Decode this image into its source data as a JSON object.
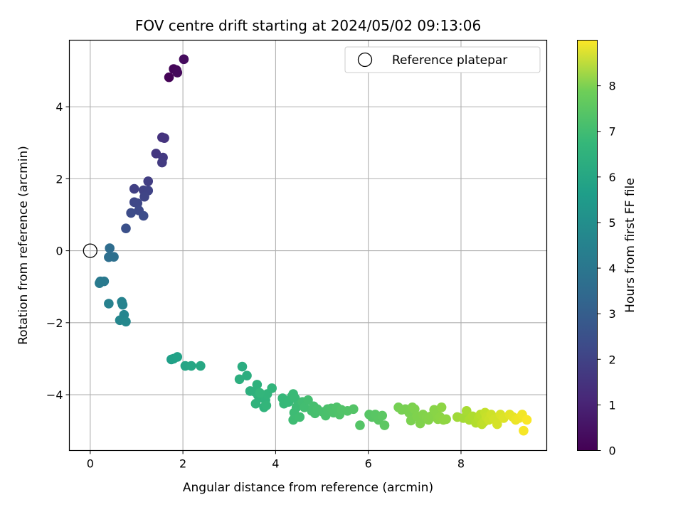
{
  "chart_data": {
    "type": "scatter",
    "title": "FOV centre drift starting at 2024/05/02 09:13:06",
    "xlabel": "Angular distance from reference (arcmin)",
    "ylabel": "Rotation from reference (arcmin)",
    "xlim": [
      -0.45,
      9.85
    ],
    "ylim": [
      -5.55,
      5.85
    ],
    "xticks": [
      0,
      2,
      4,
      6,
      8
    ],
    "xtick_labels": [
      "0",
      "2",
      "4",
      "6",
      "8"
    ],
    "yticks": [
      -4,
      -2,
      0,
      2,
      4
    ],
    "ytick_labels": [
      "−4",
      "−2",
      "0",
      "2",
      "4"
    ],
    "grid": true,
    "legend": {
      "position": "top-right",
      "entries": [
        "Reference platepar"
      ]
    },
    "reference_point": {
      "x": 0,
      "y": 0
    },
    "colorbar": {
      "label": "Hours from first FF file",
      "colormap": "viridis",
      "range": [
        0,
        9.0
      ],
      "ticks": [
        0,
        1,
        2,
        3,
        4,
        5,
        6,
        7,
        8
      ],
      "tick_labels": [
        "0",
        "1",
        "2",
        "3",
        "4",
        "5",
        "6",
        "7",
        "8"
      ]
    },
    "series": [
      {
        "points": [
          {
            "x": 1.7,
            "y": 4.82,
            "c": 0.05
          },
          {
            "x": 1.8,
            "y": 5.05,
            "c": 0.1
          },
          {
            "x": 1.86,
            "y": 5.02,
            "c": 0.15
          },
          {
            "x": 1.88,
            "y": 4.95,
            "c": 0.2
          },
          {
            "x": 2.02,
            "y": 5.32,
            "c": 0.25
          },
          {
            "x": 1.55,
            "y": 3.15,
            "c": 1.3
          },
          {
            "x": 1.6,
            "y": 3.13,
            "c": 1.35
          },
          {
            "x": 1.42,
            "y": 2.7,
            "c": 1.45
          },
          {
            "x": 1.57,
            "y": 2.59,
            "c": 1.5
          },
          {
            "x": 1.55,
            "y": 2.45,
            "c": 1.55
          },
          {
            "x": 1.25,
            "y": 1.93,
            "c": 1.65
          },
          {
            "x": 0.95,
            "y": 1.72,
            "c": 1.7
          },
          {
            "x": 1.15,
            "y": 1.68,
            "c": 1.75
          },
          {
            "x": 1.25,
            "y": 1.67,
            "c": 1.8
          },
          {
            "x": 1.17,
            "y": 1.5,
            "c": 1.85
          },
          {
            "x": 0.95,
            "y": 1.35,
            "c": 1.9
          },
          {
            "x": 1.02,
            "y": 1.32,
            "c": 1.95
          },
          {
            "x": 1.05,
            "y": 1.12,
            "c": 2.0
          },
          {
            "x": 0.88,
            "y": 1.05,
            "c": 2.05
          },
          {
            "x": 1.15,
            "y": 0.97,
            "c": 2.1
          },
          {
            "x": 0.77,
            "y": 0.62,
            "c": 2.2
          },
          {
            "x": 0.42,
            "y": 0.07,
            "c": 3.2
          },
          {
            "x": 0.4,
            "y": -0.18,
            "c": 3.25
          },
          {
            "x": 0.51,
            "y": -0.17,
            "c": 3.3
          },
          {
            "x": 0.22,
            "y": -0.85,
            "c": 3.6
          },
          {
            "x": 0.3,
            "y": -0.85,
            "c": 3.65
          },
          {
            "x": 0.2,
            "y": -0.9,
            "c": 3.7
          },
          {
            "x": 0.4,
            "y": -1.47,
            "c": 3.95
          },
          {
            "x": 0.68,
            "y": -1.42,
            "c": 4.0
          },
          {
            "x": 0.7,
            "y": -1.5,
            "c": 4.05
          },
          {
            "x": 0.73,
            "y": -1.78,
            "c": 4.1
          },
          {
            "x": 0.64,
            "y": -1.93,
            "c": 4.15
          },
          {
            "x": 0.77,
            "y": -1.97,
            "c": 4.2
          },
          {
            "x": 1.75,
            "y": -3.02,
            "c": 5.05
          },
          {
            "x": 1.8,
            "y": -3.0,
            "c": 5.1
          },
          {
            "x": 1.88,
            "y": -2.95,
            "c": 5.15
          },
          {
            "x": 2.05,
            "y": -3.2,
            "c": 5.25
          },
          {
            "x": 2.18,
            "y": -3.2,
            "c": 5.3
          },
          {
            "x": 2.38,
            "y": -3.2,
            "c": 5.35
          },
          {
            "x": 3.28,
            "y": -3.22,
            "c": 5.55
          },
          {
            "x": 3.38,
            "y": -3.47,
            "c": 5.6
          },
          {
            "x": 3.22,
            "y": -3.57,
            "c": 5.65
          },
          {
            "x": 3.45,
            "y": -3.9,
            "c": 5.7
          },
          {
            "x": 3.55,
            "y": -3.92,
            "c": 5.72
          },
          {
            "x": 3.6,
            "y": -3.72,
            "c": 5.74
          },
          {
            "x": 3.62,
            "y": -4.02,
            "c": 5.76
          },
          {
            "x": 3.7,
            "y": -4.08,
            "c": 5.78
          },
          {
            "x": 3.57,
            "y": -4.25,
            "c": 5.8
          },
          {
            "x": 3.75,
            "y": -4.35,
            "c": 5.82
          },
          {
            "x": 3.78,
            "y": -4.15,
            "c": 5.84
          },
          {
            "x": 3.82,
            "y": -3.98,
            "c": 5.86
          },
          {
            "x": 3.92,
            "y": -3.82,
            "c": 5.88
          },
          {
            "x": 3.66,
            "y": -3.95,
            "c": 5.9
          },
          {
            "x": 3.8,
            "y": -4.3,
            "c": 5.92
          },
          {
            "x": 4.15,
            "y": -4.1,
            "c": 6.0
          },
          {
            "x": 4.18,
            "y": -4.25,
            "c": 6.02
          },
          {
            "x": 4.28,
            "y": -4.2,
            "c": 6.04
          },
          {
            "x": 4.35,
            "y": -4.05,
            "c": 6.06
          },
          {
            "x": 4.38,
            "y": -3.98,
            "c": 6.08
          },
          {
            "x": 4.42,
            "y": -4.1,
            "c": 6.1
          },
          {
            "x": 4.45,
            "y": -4.35,
            "c": 6.12
          },
          {
            "x": 4.48,
            "y": -4.3,
            "c": 6.14
          },
          {
            "x": 4.4,
            "y": -4.5,
            "c": 6.16
          },
          {
            "x": 4.38,
            "y": -4.7,
            "c": 6.18
          },
          {
            "x": 4.52,
            "y": -4.62,
            "c": 6.2
          },
          {
            "x": 4.58,
            "y": -4.2,
            "c": 6.22
          },
          {
            "x": 4.62,
            "y": -4.35,
            "c": 6.24
          },
          {
            "x": 4.7,
            "y": -4.15,
            "c": 6.26
          },
          {
            "x": 4.78,
            "y": -4.45,
            "c": 6.28
          },
          {
            "x": 4.82,
            "y": -4.32,
            "c": 6.3
          },
          {
            "x": 4.85,
            "y": -4.52,
            "c": 6.32
          },
          {
            "x": 4.9,
            "y": -4.4,
            "c": 6.34
          },
          {
            "x": 5.02,
            "y": -4.48,
            "c": 6.36
          },
          {
            "x": 5.08,
            "y": -4.58,
            "c": 6.38
          },
          {
            "x": 5.12,
            "y": -4.4,
            "c": 6.4
          },
          {
            "x": 5.2,
            "y": -4.38,
            "c": 6.42
          },
          {
            "x": 5.25,
            "y": -4.5,
            "c": 6.44
          },
          {
            "x": 5.32,
            "y": -4.35,
            "c": 6.46
          },
          {
            "x": 5.38,
            "y": -4.55,
            "c": 6.48
          },
          {
            "x": 5.42,
            "y": -4.42,
            "c": 6.5
          },
          {
            "x": 5.55,
            "y": -4.45,
            "c": 6.52
          },
          {
            "x": 5.68,
            "y": -4.4,
            "c": 6.54
          },
          {
            "x": 5.82,
            "y": -4.85,
            "c": 6.56
          },
          {
            "x": 6.02,
            "y": -4.55,
            "c": 6.6
          },
          {
            "x": 6.08,
            "y": -4.62,
            "c": 6.62
          },
          {
            "x": 6.15,
            "y": -4.55,
            "c": 6.64
          },
          {
            "x": 6.22,
            "y": -4.7,
            "c": 6.66
          },
          {
            "x": 6.3,
            "y": -4.58,
            "c": 6.68
          },
          {
            "x": 6.35,
            "y": -4.85,
            "c": 6.7
          },
          {
            "x": 6.65,
            "y": -4.35,
            "c": 7.1
          },
          {
            "x": 6.72,
            "y": -4.42,
            "c": 7.12
          },
          {
            "x": 6.8,
            "y": -4.4,
            "c": 7.14
          },
          {
            "x": 6.88,
            "y": -4.5,
            "c": 7.16
          },
          {
            "x": 6.92,
            "y": -4.72,
            "c": 7.18
          },
          {
            "x": 6.95,
            "y": -4.35,
            "c": 7.2
          },
          {
            "x": 7.0,
            "y": -4.4,
            "c": 7.22
          },
          {
            "x": 7.05,
            "y": -4.6,
            "c": 7.24
          },
          {
            "x": 7.12,
            "y": -4.8,
            "c": 7.26
          },
          {
            "x": 7.18,
            "y": -4.55,
            "c": 7.28
          },
          {
            "x": 7.25,
            "y": -4.62,
            "c": 7.3
          },
          {
            "x": 7.3,
            "y": -4.7,
            "c": 7.32
          },
          {
            "x": 7.35,
            "y": -4.6,
            "c": 7.34
          },
          {
            "x": 7.42,
            "y": -4.42,
            "c": 7.36
          },
          {
            "x": 7.48,
            "y": -4.55,
            "c": 7.38
          },
          {
            "x": 7.5,
            "y": -4.68,
            "c": 7.4
          },
          {
            "x": 7.55,
            "y": -4.62,
            "c": 7.42
          },
          {
            "x": 7.58,
            "y": -4.35,
            "c": 7.44
          },
          {
            "x": 7.62,
            "y": -4.7,
            "c": 7.46
          },
          {
            "x": 7.68,
            "y": -4.68,
            "c": 7.48
          },
          {
            "x": 7.92,
            "y": -4.62,
            "c": 7.7
          },
          {
            "x": 8.05,
            "y": -4.65,
            "c": 7.75
          },
          {
            "x": 8.12,
            "y": -4.45,
            "c": 7.8
          },
          {
            "x": 8.18,
            "y": -4.7,
            "c": 7.85
          },
          {
            "x": 8.25,
            "y": -4.6,
            "c": 7.9
          },
          {
            "x": 8.32,
            "y": -4.78,
            "c": 7.95
          },
          {
            "x": 8.38,
            "y": -4.65,
            "c": 8.0
          },
          {
            "x": 8.42,
            "y": -4.55,
            "c": 8.05
          },
          {
            "x": 8.45,
            "y": -4.82,
            "c": 8.1
          },
          {
            "x": 8.5,
            "y": -4.75,
            "c": 8.15
          },
          {
            "x": 8.52,
            "y": -4.5,
            "c": 8.2
          },
          {
            "x": 8.55,
            "y": -4.62,
            "c": 8.25
          },
          {
            "x": 8.6,
            "y": -4.7,
            "c": 8.3
          },
          {
            "x": 8.65,
            "y": -4.55,
            "c": 8.35
          },
          {
            "x": 8.72,
            "y": -4.68,
            "c": 8.4
          },
          {
            "x": 8.78,
            "y": -4.82,
            "c": 8.45
          },
          {
            "x": 8.85,
            "y": -4.55,
            "c": 8.5
          },
          {
            "x": 8.92,
            "y": -4.65,
            "c": 8.55
          },
          {
            "x": 9.05,
            "y": -4.55,
            "c": 8.65
          },
          {
            "x": 9.12,
            "y": -4.62,
            "c": 8.7
          },
          {
            "x": 9.18,
            "y": -4.7,
            "c": 8.75
          },
          {
            "x": 9.25,
            "y": -4.65,
            "c": 8.8
          },
          {
            "x": 9.32,
            "y": -4.55,
            "c": 8.85
          },
          {
            "x": 9.35,
            "y": -5.0,
            "c": 8.9
          },
          {
            "x": 9.42,
            "y": -4.7,
            "c": 8.95
          }
        ]
      }
    ]
  }
}
